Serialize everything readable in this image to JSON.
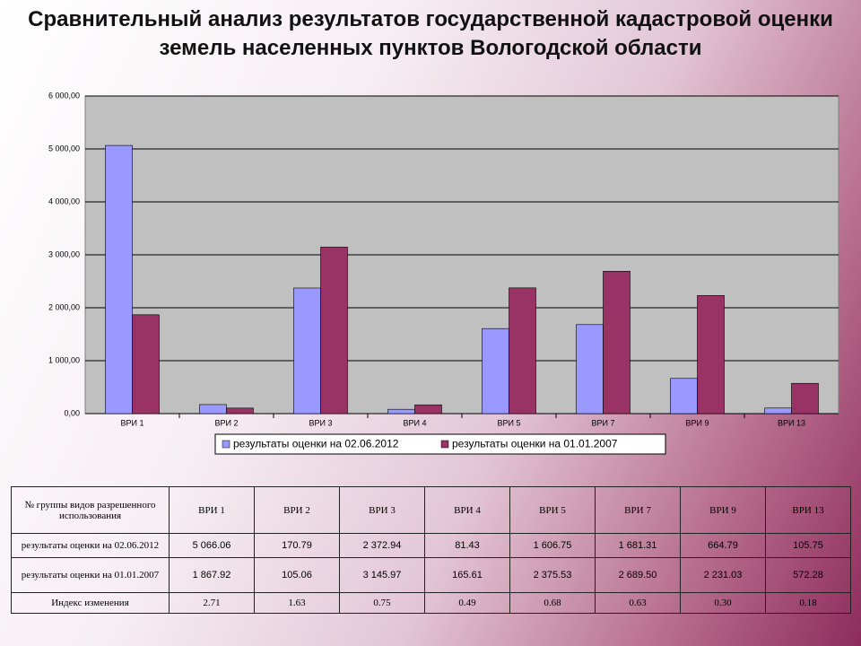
{
  "chart_data": {
    "type": "bar",
    "title": "Сравнительный анализ результатов государственной кадастровой оценки земель населенных пунктов Вологодской области",
    "categories": [
      "ВРИ 1",
      "ВРИ 2",
      "ВРИ 3",
      "ВРИ 4",
      "ВРИ 5",
      "ВРИ 7",
      "ВРИ 9",
      "ВРИ 13"
    ],
    "series": [
      {
        "name": "результаты оценки на 02.06.2012",
        "color": "#9999ff",
        "values": [
          5066.06,
          170.79,
          2372.94,
          81.43,
          1606.75,
          1681.31,
          664.79,
          105.75
        ]
      },
      {
        "name": "результаты оценки на 01.01.2007",
        "color": "#993366",
        "values": [
          1867.92,
          105.06,
          3145.97,
          165.61,
          2375.53,
          2689.5,
          2231.03,
          572.28
        ]
      }
    ],
    "ylim": [
      0,
      6000
    ],
    "yticks": [
      {
        "value": 0,
        "label": "0,00"
      },
      {
        "value": 1000,
        "label": "1 000,00"
      },
      {
        "value": 2000,
        "label": "2 000,00"
      },
      {
        "value": 3000,
        "label": "3 000,00"
      },
      {
        "value": 4000,
        "label": "4 000,00"
      },
      {
        "value": 5000,
        "label": "5 000,00"
      },
      {
        "value": 6000,
        "label": "6 000,00"
      }
    ],
    "grid": true,
    "legend": "bottom"
  },
  "table": {
    "header": [
      "№ группы видов разрешенного использования",
      "ВРИ 1",
      "ВРИ 2",
      "ВРИ 3",
      "ВРИ 4",
      "ВРИ 5",
      "ВРИ 7",
      "ВРИ 9",
      "ВРИ 13"
    ],
    "rows": [
      [
        "результаты оценки на 02.06.2012",
        "5 066.06",
        "170.79",
        "2 372.94",
        "81.43",
        "1 606.75",
        "1 681.31",
        "664.79",
        "105.75"
      ],
      [
        "результаты оценки на 01.01.2007",
        "1 867.92",
        "105.06",
        "3 145.97",
        "165.61",
        "2 375.53",
        "2 689.50",
        "2 231.03",
        "572.28"
      ],
      [
        "Индекс изменения",
        "2.71",
        "1.63",
        "0.75",
        "0.49",
        "0.68",
        "0.63",
        "0.30",
        "0.18"
      ]
    ]
  }
}
